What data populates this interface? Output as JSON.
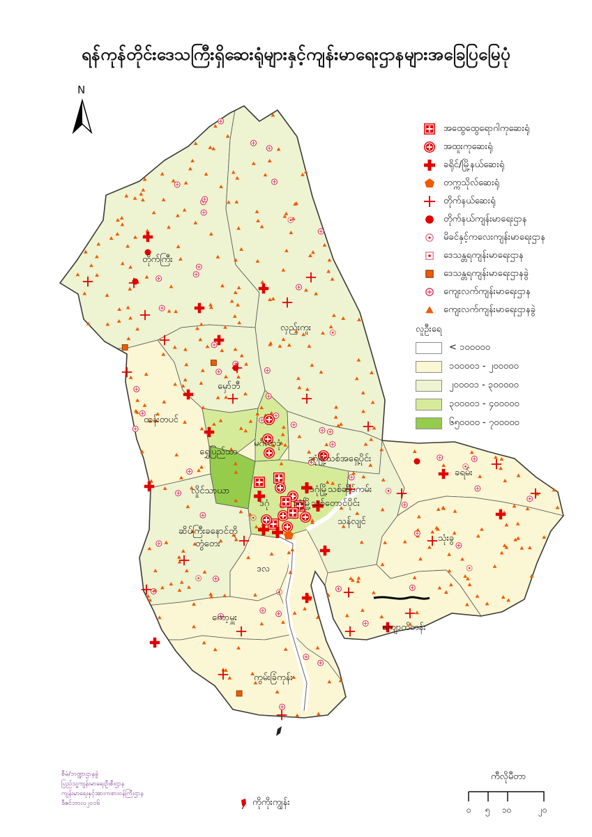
{
  "title": "ရန်ကုန်တိုင်းဒေသကြီးရှိဆေးရုံများနှင့်ကျန်းမာရေးဌာနများအခြေပြမြေပုံ",
  "north_label": "N",
  "legend": {
    "items": [
      {
        "label": "အထွေထွေရောဂါကုဆေးရုံ",
        "icon": "boxed-cross-icon"
      },
      {
        "label": "အထူးကုဆေးရုံ",
        "icon": "circled-cross-icon"
      },
      {
        "label": "ခရိုင်/မြို့နယ်ဆေးရုံ",
        "icon": "bold-cross-icon"
      },
      {
        "label": "တက္ကသိုလ်ဆေးရုံ",
        "icon": "pentagon-icon"
      },
      {
        "label": "တိုက်နယ်ဆေးရုံ",
        "icon": "thin-cross-icon"
      },
      {
        "label": "တိုက်နယ်ကျန်းမာရေးဌာန",
        "icon": "filled-dot-icon"
      },
      {
        "label": "မိခင်နှင့်ကလေးကျန်းမာရေးဌာန",
        "icon": "ring-dot-icon"
      },
      {
        "label": "ဒေသန္တရကျန်းမာရေးဌာန",
        "icon": "boxed-dot-icon"
      },
      {
        "label": "ဒေသန္တရကျန်းမာရေးဌာနခွဲ",
        "icon": "orange-square-icon"
      },
      {
        "label": "ကျေးလက်ကျန်းမာရေးဌာန",
        "icon": "circle-plus-icon"
      },
      {
        "label": "ကျေးလက်ကျန်းမာရေးဌာနခွဲ",
        "icon": "triangle-icon"
      }
    ],
    "population_title": "လူဦးရေ",
    "population_classes": [
      {
        "label": "< ၁၀၀၀၀၀",
        "color": "#ffffff"
      },
      {
        "label": "၁၀၀၀၀၁ - ၂၀၀၀၀၀",
        "color": "#fbf6d3"
      },
      {
        "label": "၂၀၀၀၀၁ - ၃၀၀၀၀၀",
        "color": "#eef3d2"
      },
      {
        "label": "၃၀၀၀၀၁ - ၄၀၀၀၀၀",
        "color": "#d6eb9a"
      },
      {
        "label": "၆၅၀၀၀၀ - ၇၀၀၀၀၀",
        "color": "#95cc4c"
      }
    ]
  },
  "townships": {
    "taikkyi": "တိုက်ကြီး",
    "hlegu": "လှည်းကူး",
    "hmawbi": "မှော်ဘီ",
    "htantabin": "ထန်းတပင်",
    "shwepyitha": "ရွှေပြည်သာ",
    "hlaingtharya": "လှိုင်သာယာ",
    "mingaladon": "မင်္ဂလာဒုံ",
    "dagonmyothit_north": "ဒဂုံမြို့သစ်အရှေ့ပိုင်း",
    "dagonmyothit_seikkan": "ဒဂုံမြို့သစ်ဆိပ်ကမ်း",
    "dagonmyothit_south": "ဒဂုံမြို့သစ်တောင်ပိုင်း",
    "seikgyikanaungto": "ဆိပ်ကြီးခနောင်တို",
    "twantay": "တွံတေး",
    "dala": "ဒလ",
    "thanlyin": "သန်လျင်",
    "kayan": "ခရမ်း",
    "thongwa": "သုံးခွ",
    "kyauktan": "ကျောက်တန်း",
    "kawhmu": "ကော့မှူး",
    "kungyangon": "ကွမ်းခြံကုန်း",
    "dagon": "ဒဂုံ"
  },
  "credit_lines": [
    "စီမံ/ဘဏ္ဍာဌာနခွဲ",
    "ပြည်သူ့ကျန်းမာရေးဦးစီးဌာန",
    "ကျန်းမာရေးနှင့်အားကစားဝန်ကြီးဌာန",
    "ဒီဇင်ဘာလ၂၀၁၆"
  ],
  "inset_label": "ကိုကိုးကျွန်း",
  "scale_bar": {
    "unit": "ကီလိုမီတာ",
    "ticks": [
      "၀",
      "၅",
      "၁၀",
      "၂၀"
    ]
  },
  "colors": {
    "hospital_red": "#e00000",
    "subcenter_orange": "#f05a00",
    "boundary": "#404040"
  }
}
